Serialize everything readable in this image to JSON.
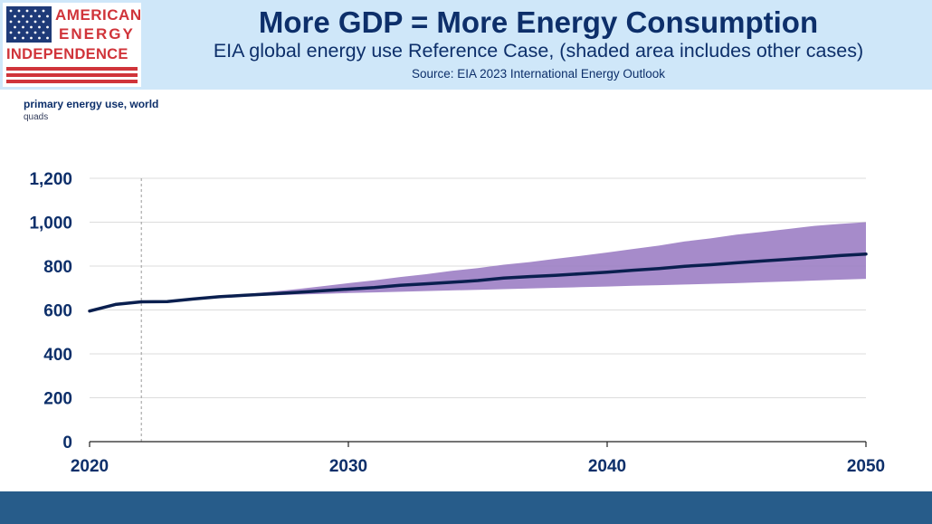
{
  "header": {
    "title": "More GDP = More Energy Consumption",
    "subtitle": "EIA global energy use Reference Case, (shaded area includes other cases)",
    "source": "Source: EIA 2023 International Energy Outlook"
  },
  "logo": {
    "line1": "AMERICAN",
    "line2": "ENERGY",
    "line3": "INDEPENDENCE",
    "icon": "us-flag-icon"
  },
  "colors": {
    "header_bg": "#cfe7f9",
    "title": "#0d2f6a",
    "series_line": "#0a1f4f",
    "band_fill": "#9c7ec4",
    "grid": "#dcdcdc",
    "footer": "#275c8a",
    "logo_red": "#d0343a"
  },
  "chart_data": {
    "type": "area",
    "ylabel": "primary energy use, world",
    "yunit": "quads",
    "xlim": [
      2020,
      2050
    ],
    "ylim": [
      0,
      1200
    ],
    "x_ticks": [
      2020,
      2030,
      2040,
      2050
    ],
    "x_tick_labels": [
      "2020",
      "2030",
      "2040",
      "2050"
    ],
    "y_ticks": [
      0,
      200,
      400,
      600,
      800,
      1000,
      1200
    ],
    "y_tick_labels": [
      "0",
      "200",
      "400",
      "600",
      "800",
      "1,000",
      "1,200"
    ],
    "grid": true,
    "reference_marker_year": 2022,
    "series": [
      {
        "name": "Reference Case",
        "x": [
          2020,
          2021,
          2022,
          2023,
          2024,
          2025,
          2026,
          2027,
          2028,
          2029,
          2030,
          2031,
          2032,
          2033,
          2034,
          2035,
          2036,
          2037,
          2038,
          2039,
          2040,
          2041,
          2042,
          2043,
          2044,
          2045,
          2046,
          2047,
          2048,
          2049,
          2050
        ],
        "values": [
          595,
          625,
          637,
          638,
          650,
          660,
          667,
          673,
          680,
          688,
          695,
          702,
          712,
          719,
          726,
          734,
          745,
          752,
          758,
          765,
          772,
          781,
          789,
          799,
          806,
          815,
          823,
          831,
          839,
          848,
          855
        ]
      }
    ],
    "band": {
      "name": "Other cases (range)",
      "x": [
        2020,
        2021,
        2022,
        2023,
        2024,
        2025,
        2026,
        2027,
        2028,
        2029,
        2030,
        2031,
        2032,
        2033,
        2034,
        2035,
        2036,
        2037,
        2038,
        2039,
        2040,
        2041,
        2042,
        2043,
        2044,
        2045,
        2046,
        2047,
        2048,
        2049,
        2050
      ],
      "low": [
        595,
        625,
        637,
        638,
        650,
        658,
        662,
        666,
        670,
        673,
        677,
        680,
        683,
        686,
        689,
        692,
        695,
        698,
        701,
        704,
        707,
        710,
        713,
        716,
        719,
        722,
        726,
        730,
        734,
        738,
        742
      ],
      "high": [
        595,
        625,
        637,
        638,
        650,
        662,
        672,
        683,
        695,
        708,
        722,
        735,
        750,
        763,
        778,
        791,
        806,
        818,
        833,
        847,
        862,
        878,
        893,
        912,
        926,
        943,
        956,
        969,
        983,
        992,
        1000
      ]
    }
  }
}
